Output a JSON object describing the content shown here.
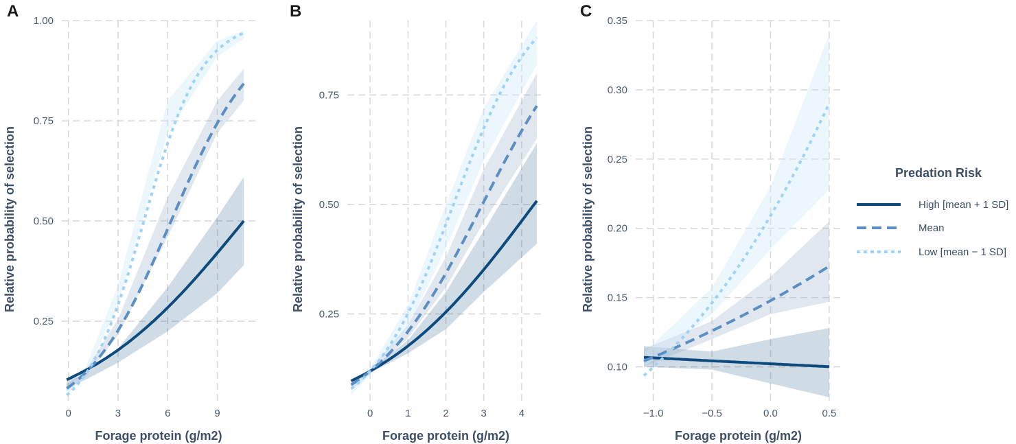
{
  "legend": {
    "title": "Predation Risk",
    "entries": [
      {
        "label": "High [mean + 1 SD]",
        "color": "#0d4a7d",
        "fill": "#0d4a7d",
        "dash": "solid"
      },
      {
        "label": "Mean",
        "color": "#5a8ec4",
        "fill": "#9ab0c8",
        "dash": "dashed"
      },
      {
        "label": "Low [mean − 1 SD]",
        "color": "#9fd3f5",
        "fill": "#cfe8fb",
        "dash": "dotted"
      }
    ]
  },
  "chart_data": [
    {
      "panel": "A",
      "type": "line",
      "xlabel": "Forage protein (g/m2)",
      "ylabel": "Relative probability of selection",
      "xlim": [
        -0.4,
        11.3
      ],
      "ylim": [
        0.05,
        1.0
      ],
      "xticks": [
        0,
        3,
        6,
        9
      ],
      "xtick_labels": [
        "0",
        "3",
        "6",
        "9"
      ],
      "yticks": [
        0.25,
        0.5,
        0.75,
        1.0
      ],
      "ytick_labels": [
        "0.25",
        "0.50",
        "0.75",
        "1.00"
      ],
      "series": [
        {
          "name": "High [mean + 1 SD]",
          "x": [
            -0.1,
            10.6
          ],
          "logit_intercept": -2.13,
          "logit_slope": 0.201,
          "band": [
            [
              -0.1,
              0.086,
              0.104
            ],
            [
              1,
              0.103,
              0.117
            ],
            [
              3,
              0.147,
              0.182
            ],
            [
              6,
              0.225,
              0.335
            ],
            [
              9,
              0.32,
              0.51
            ],
            [
              10.6,
              0.39,
              0.61
            ]
          ]
        },
        {
          "name": "Mean",
          "x": [
            -0.1,
            10.6
          ],
          "logit_intercept": -2.37,
          "logit_slope": 0.382,
          "band": [
            [
              -0.1,
              0.075,
              0.093
            ],
            [
              1,
              0.11,
              0.125
            ],
            [
              3,
              0.215,
              0.255
            ],
            [
              6,
              0.46,
              0.56
            ],
            [
              9,
              0.72,
              0.8
            ],
            [
              10.6,
              0.8,
              0.88
            ]
          ]
        },
        {
          "name": "Low [mean − 1 SD]",
          "x": [
            -0.1,
            10.6
          ],
          "logit_intercept": -2.6,
          "logit_slope": 0.57,
          "band": [
            [
              -0.1,
              0.065,
              0.083
            ],
            [
              1,
              0.112,
              0.13
            ],
            [
              3,
              0.29,
              0.34
            ],
            [
              6,
              0.72,
              0.8
            ],
            [
              9,
              0.91,
              0.95
            ],
            [
              10.6,
              0.955,
              0.975
            ]
          ]
        }
      ]
    },
    {
      "panel": "B",
      "type": "line",
      "xlabel": "Forage protein (g/m2)",
      "ylabel": "Relative probability of selection",
      "xlim": [
        -0.6,
        4.6
      ],
      "ylim": [
        0.05,
        0.92
      ],
      "xticks": [
        0,
        1,
        2,
        3,
        4
      ],
      "xtick_labels": [
        "0",
        "1",
        "2",
        "3",
        "4"
      ],
      "yticks": [
        0.25,
        0.5,
        0.75
      ],
      "ytick_labels": [
        "0.25",
        "0.50",
        "0.75"
      ],
      "series": [
        {
          "name": "High [mean + 1 SD]",
          "x": [
            -0.5,
            4.4
          ],
          "logit_intercept": -2.0,
          "logit_slope": 0.462,
          "band": [
            [
              -0.5,
              0.088,
              0.1
            ],
            [
              0,
              0.115,
              0.122
            ],
            [
              1,
              0.16,
              0.19
            ],
            [
              2,
              0.215,
              0.3
            ],
            [
              3,
              0.3,
              0.44
            ],
            [
              4.4,
              0.41,
              0.64
            ]
          ]
        },
        {
          "name": "Mean",
          "x": [
            -0.5,
            4.4
          ],
          "logit_intercept": -2.0,
          "logit_slope": 0.675,
          "band": [
            [
              -0.5,
              0.075,
              0.09
            ],
            [
              0,
              0.112,
              0.124
            ],
            [
              1,
              0.195,
              0.225
            ],
            [
              2,
              0.31,
              0.38
            ],
            [
              3,
              0.46,
              0.58
            ],
            [
              4.4,
              0.65,
              0.8
            ]
          ]
        },
        {
          "name": "Low [mean − 1 SD]",
          "x": [
            -0.5,
            4.4
          ],
          "logit_intercept": -2.0,
          "logit_slope": 0.909,
          "band": [
            [
              -0.5,
              0.065,
              0.08
            ],
            [
              0,
              0.11,
              0.125
            ],
            [
              1,
              0.22,
              0.27
            ],
            [
              2,
              0.4,
              0.5
            ],
            [
              3,
              0.6,
              0.72
            ],
            [
              4.4,
              0.82,
              0.92
            ]
          ]
        }
      ]
    },
    {
      "panel": "C",
      "type": "line",
      "xlabel": "Forage protein (g/m2)",
      "ylabel": "Relative probability of selection",
      "xlim": [
        -1.15,
        0.6
      ],
      "ylim": [
        0.075,
        0.35
      ],
      "xticks": [
        -1.0,
        -0.5,
        0.0,
        0.5
      ],
      "xtick_labels": [
        "−1.0",
        "−0.5",
        "0.0",
        "0.5"
      ],
      "yticks": [
        0.1,
        0.15,
        0.2,
        0.25,
        0.3,
        0.35
      ],
      "ytick_labels": [
        "0.10",
        "0.15",
        "0.20",
        "0.25",
        "0.30",
        "0.35"
      ],
      "series": [
        {
          "name": "High [mean + 1 SD]",
          "x": [
            -1.08,
            0.5
          ],
          "logit_intercept": -2.173,
          "logit_slope": -0.046,
          "band": [
            [
              -1.08,
              0.1,
              0.115
            ],
            [
              -0.5,
              0.098,
              0.111
            ],
            [
              0,
              0.088,
              0.12
            ],
            [
              0.5,
              0.078,
              0.128
            ]
          ]
        },
        {
          "name": "Mean",
          "x": [
            -1.08,
            0.5
          ],
          "logit_intercept": -1.752,
          "logit_slope": 0.37,
          "band": [
            [
              -1.08,
              0.1,
              0.113
            ],
            [
              -0.5,
              0.12,
              0.133
            ],
            [
              0,
              0.138,
              0.165
            ],
            [
              0.5,
              0.147,
              0.205
            ]
          ]
        },
        {
          "name": "Low [mean − 1 SD]",
          "x": [
            -1.08,
            0.5
          ],
          "logit_intercept": -1.33,
          "logit_slope": 0.87,
          "band": [
            [
              -1.08,
              0.1,
              0.11
            ],
            [
              -0.5,
              0.138,
              0.157
            ],
            [
              0,
              0.185,
              0.23
            ],
            [
              0.5,
              0.228,
              0.34
            ]
          ]
        }
      ]
    }
  ]
}
